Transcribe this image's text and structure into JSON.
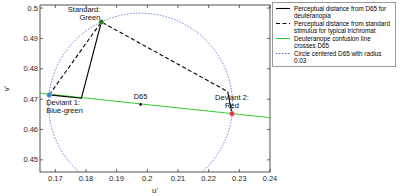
{
  "chart_data": {
    "type": "line",
    "xlabel": "u'",
    "ylabel": "v'",
    "xlim": [
      0.165,
      0.24
    ],
    "ylim": [
      0.446,
      0.501
    ],
    "xticks": [
      0.17,
      0.18,
      0.19,
      0.2,
      0.21,
      0.22,
      0.23,
      0.24
    ],
    "yticks": [
      0.45,
      0.46,
      0.47,
      0.48,
      0.49,
      0.5
    ],
    "grid": false,
    "legend": "upper right",
    "series": [
      {
        "name": "Perceptual distance from D65 for deuteranopia",
        "color": "#000000",
        "line_style": "solid",
        "x": [
          0.185,
          0.1785,
          0.168,
          null,
          0.2262,
          0.2276
        ],
        "values": [
          0.4954,
          0.4703,
          0.4714,
          null,
          0.4725,
          0.4652
        ]
      },
      {
        "name": "Perceptual distance from standard stimulus for typical trichromat",
        "color": "#000000",
        "line_style": "dashed",
        "x": [
          0.168,
          0.185,
          0.2262
        ],
        "values": [
          0.4714,
          0.4954,
          0.4725
        ]
      },
      {
        "name": "Deuteranope confusion line crosses D65",
        "color": "#33cc33",
        "line_style": "solid",
        "x": [
          0.16,
          0.24
        ],
        "values": [
          0.4725,
          0.4639
        ]
      }
    ],
    "circle": {
      "name": "Circle centered D65 with radius 0.03",
      "color": "#4a6fd0",
      "line_style": "dotted",
      "center": [
        0.1978,
        0.4683
      ],
      "radius": 0.03
    },
    "points": [
      {
        "label": [
          "Standard:",
          "Green"
        ],
        "x": 0.185,
        "y": 0.4954,
        "color": "#1f7a1f"
      },
      {
        "label": [
          "D65"
        ],
        "x": 0.1978,
        "y": 0.4683,
        "color": "#000000"
      },
      {
        "label": [
          "Deviant 1:",
          "Blue-green"
        ],
        "x": 0.168,
        "y": 0.4714,
        "color": "#3b82c4"
      },
      {
        "label": [
          "Deviant 2:",
          "Red"
        ],
        "x": 0.2276,
        "y": 0.4652,
        "color": "#d83a3a"
      }
    ]
  }
}
